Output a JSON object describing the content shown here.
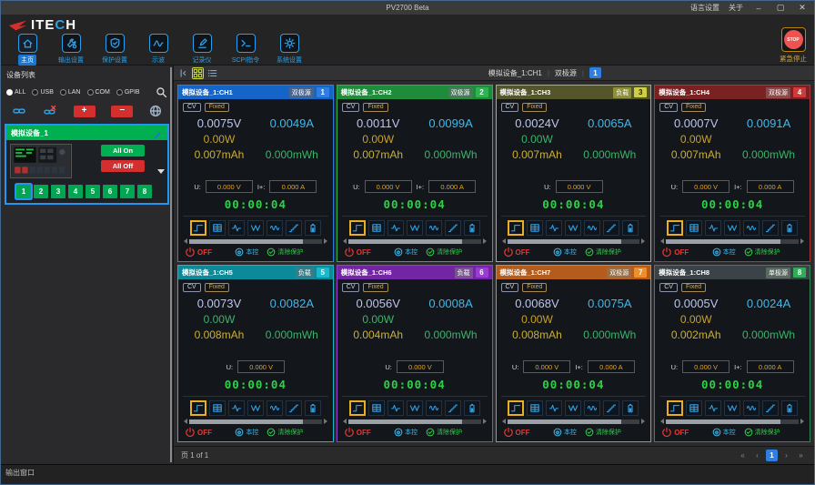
{
  "window": {
    "title": "PV2700 Beta",
    "menu_items": [
      "语言设置",
      "关于"
    ],
    "controls": {
      "minimize": "–",
      "maximize": "▢",
      "close": "✕"
    }
  },
  "brand": {
    "name_left": "ITE",
    "name_accent": "C",
    "name_right": "H"
  },
  "toolbar": {
    "items": [
      {
        "label": "主页",
        "icon": "home",
        "active": true
      },
      {
        "label": "输出设置",
        "icon": "output-settings",
        "active": false
      },
      {
        "label": "保护设置",
        "icon": "protection-settings",
        "active": false
      },
      {
        "label": "示波",
        "icon": "oscilloscope",
        "active": false
      },
      {
        "label": "记录仪",
        "icon": "recorder",
        "active": false
      },
      {
        "label": "SCPI指令",
        "icon": "scpi-terminal",
        "active": false
      },
      {
        "label": "系统设置",
        "icon": "system-settings",
        "active": false
      }
    ],
    "stop": {
      "label": "STOP",
      "caption": "紧急停止"
    }
  },
  "sidebar": {
    "title": "设备列表",
    "filters": [
      "ALL",
      "USB",
      "LAN",
      "COM",
      "GPIB"
    ],
    "selected_filter": "ALL",
    "device": {
      "name": "模拟设备_1",
      "all_on_label": "All On",
      "all_off_label": "All Off",
      "channels": [
        "1",
        "2",
        "3",
        "4",
        "5",
        "6",
        "7",
        "8"
      ],
      "selected_channel": "1"
    }
  },
  "main": {
    "breadcrumb": {
      "device": "模拟设备_1:CH1",
      "type": "双极源",
      "channel": "1"
    },
    "card_defaults": {
      "tags": [
        "CV",
        "Fixed"
      ],
      "u_label": "U:",
      "u_value": "0.000 V",
      "i_label": "I+:",
      "i_value": "0.000 A",
      "timer": "00:00:04",
      "state": "OFF",
      "local_label": "本控",
      "protect_label": "清除保护",
      "icons": [
        "step-wave",
        "sequence-table",
        "pulse-wave",
        "surge-wave",
        "sine-wave",
        "ramp-wave",
        "battery"
      ]
    },
    "cards": [
      {
        "title": "模拟设备_1:CH1",
        "type": "双极源",
        "num": "1",
        "voltage": "0.0075V",
        "current": "0.0049A",
        "power": "0.00W",
        "capacity": "0.007mAh",
        "energy": "0.000mWh",
        "show_i": true,
        "header_bg": "#1565c8",
        "accent": "#2e7fe0",
        "num_bg": "#2e7fe0",
        "num_fg": "#ffffff",
        "badge_bg": "#4a6490",
        "power_color": "#c9a227"
      },
      {
        "title": "模拟设备_1:CH2",
        "type": "双极源",
        "num": "2",
        "voltage": "0.0011V",
        "current": "0.0099A",
        "power": "0.00W",
        "capacity": "0.007mAh",
        "energy": "0.000mWh",
        "show_i": true,
        "header_bg": "#1f8c3c",
        "accent": "#2fb350",
        "num_bg": "#2fb350",
        "num_fg": "#ffffff",
        "badge_bg": "#49795a",
        "power_color": "#c9a227"
      },
      {
        "title": "模拟设备_1:CH3",
        "type": "负载",
        "num": "3",
        "voltage": "0.0024V",
        "current": "0.0065A",
        "power": "0.00W",
        "capacity": "0.007mAh",
        "energy": "0.000mWh",
        "show_i": false,
        "header_bg": "#55552b",
        "accent": "#b5b542",
        "num_bg": "#cfcf45",
        "num_fg": "#222222",
        "badge_bg": "#8f8f35",
        "power_color": "#3cb46a"
      },
      {
        "title": "模拟设备_1:CH4",
        "type": "双极源",
        "num": "4",
        "voltage": "0.0007V",
        "current": "0.0091A",
        "power": "0.00W",
        "capacity": "0.007mAh",
        "energy": "0.000mWh",
        "show_i": true,
        "header_bg": "#7a2222",
        "accent": "#b03535",
        "num_bg": "#cf3b3b",
        "num_fg": "#ffffff",
        "badge_bg": "#8a4a4a",
        "power_color": "#c9a227"
      },
      {
        "title": "模拟设备_1:CH5",
        "type": "负载",
        "num": "5",
        "voltage": "0.0073V",
        "current": "0.0082A",
        "power": "0.00W",
        "capacity": "0.008mAh",
        "energy": "0.000mWh",
        "show_i": false,
        "header_bg": "#0d8a9a",
        "accent": "#19b9cd",
        "num_bg": "#19b9cd",
        "num_fg": "#ffffff",
        "badge_bg": "#3c7c88",
        "power_color": "#3cb46a"
      },
      {
        "title": "模拟设备_1:CH6",
        "type": "负载",
        "num": "6",
        "voltage": "0.0056V",
        "current": "0.0008A",
        "power": "0.00W",
        "capacity": "0.004mAh",
        "energy": "0.000mWh",
        "show_i": false,
        "header_bg": "#7326a3",
        "accent": "#9b3bd6",
        "num_bg": "#9b3bd6",
        "num_fg": "#ffffff",
        "badge_bg": "#7a5490",
        "power_color": "#3cb46a"
      },
      {
        "title": "模拟设备_1:CH7",
        "type": "双极源",
        "num": "7",
        "voltage": "0.0068V",
        "current": "0.0075A",
        "power": "0.00W",
        "capacity": "0.008mAh",
        "energy": "0.000mWh",
        "show_i": true,
        "header_bg": "#b35c1b",
        "accent": "#e08428",
        "num_bg": "#ef8f2a",
        "num_fg": "#ffffff",
        "badge_bg": "#9a6d42",
        "power_color": "#c9a227"
      },
      {
        "title": "模拟设备_1:CH8",
        "type": "单极源",
        "num": "8",
        "voltage": "0.0005V",
        "current": "0.0024A",
        "power": "0.00W",
        "capacity": "0.002mAh",
        "energy": "0.000mWh",
        "show_i": true,
        "header_bg": "#3c4348",
        "accent": "#2f8a52",
        "num_bg": "#2fae57",
        "num_fg": "#ffffff",
        "badge_bg": "#5a6a60",
        "power_color": "#c9a227"
      }
    ],
    "pager": {
      "label": "页 1 of 1",
      "buttons": [
        "«",
        "‹",
        "1",
        "›",
        "»"
      ],
      "active": "1"
    }
  },
  "bottom": {
    "label": "输出窗口"
  },
  "colors": {
    "accent_blue": "#2e7fe0",
    "stop_red": "#ef5350",
    "green": "#00b050",
    "red": "#d32f2f",
    "timer_green": "#2ed04a"
  }
}
